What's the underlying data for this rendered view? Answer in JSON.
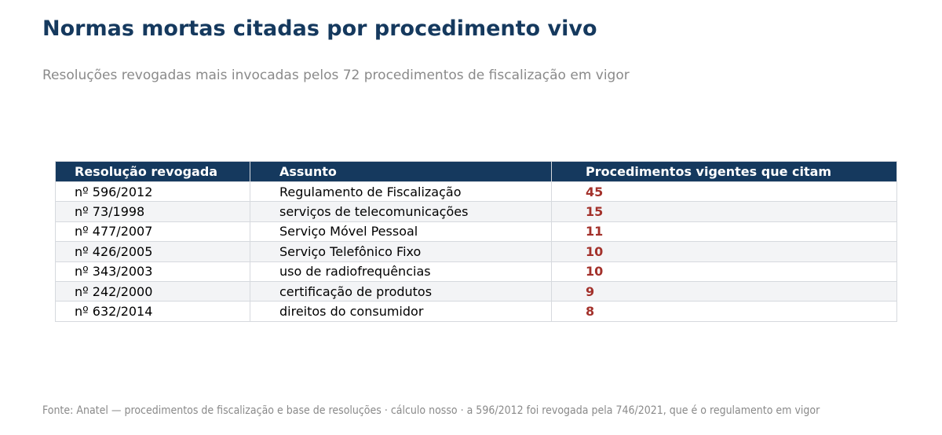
{
  "title": "Normas mortas citadas por procedimento vivo",
  "subtitle": "Resoluções revogadas mais invocadas pelos 72 procedimentos de fiscalização em vigor",
  "source": "Fonte: Anatel — procedimentos de fiscalização e base de resoluções · cálculo nosso · a 596/2012 foi revogada pela 746/2021, que é o regulamento em vigor",
  "colors": {
    "header_bg": "#15395e",
    "header_text": "#ffffff",
    "title": "#15395e",
    "subtitle": "#8a8a8a",
    "count_value": "#a3312b",
    "row_alt": "#f3f4f6",
    "grid": "#d6d9de"
  },
  "chart_data": {
    "type": "table",
    "title": "Normas mortas citadas por procedimento vivo",
    "subtitle": "Resoluções revogadas mais invocadas pelos 72 procedimentos de fiscalização em vigor",
    "columns": [
      "Resolução revogada",
      "Assunto",
      "Procedimentos vigentes que citam"
    ],
    "rows": [
      {
        "resolucao": "nº 596/2012",
        "assunto": "Regulamento de Fiscalização",
        "procedimentos": 45
      },
      {
        "resolucao": "nº 73/1998",
        "assunto": "serviços de telecomunicações",
        "procedimentos": 15
      },
      {
        "resolucao": "nº 477/2007",
        "assunto": "Serviço Móvel Pessoal",
        "procedimentos": 11
      },
      {
        "resolucao": "nº 426/2005",
        "assunto": "Serviço Telefônico Fixo",
        "procedimentos": 10
      },
      {
        "resolucao": "nº 343/2003",
        "assunto": "uso de radiofrequências",
        "procedimentos": 10
      },
      {
        "resolucao": "nº 242/2000",
        "assunto": "certificação de produtos",
        "procedimentos": 9
      },
      {
        "resolucao": "nº 632/2014",
        "assunto": "direitos do consumidor",
        "procedimentos": 8
      }
    ]
  }
}
